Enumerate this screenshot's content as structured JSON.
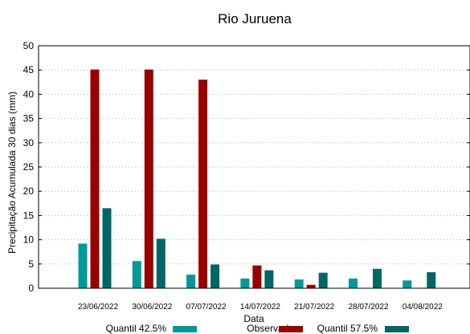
{
  "chart_data": {
    "type": "bar",
    "title": "Rio Juruena",
    "xlabel": "Data",
    "ylabel": "Precipitação Acumulada 30 dias (mm)",
    "ylim": [
      0,
      50
    ],
    "yticks": [
      0,
      5,
      10,
      15,
      20,
      25,
      30,
      35,
      40,
      45,
      50
    ],
    "grid": true,
    "legend_position": "bottom",
    "categories": [
      "23/06/2022",
      "30/06/2022",
      "07/07/2022",
      "14/07/2022",
      "21/07/2022",
      "28/07/2022",
      "04/08/2022"
    ],
    "series": [
      {
        "name": "Quantil 42.5%",
        "color": "#009999",
        "values": [
          9.2,
          5.6,
          2.8,
          2.0,
          1.8,
          2.0,
          1.6
        ]
      },
      {
        "name": "Observado",
        "color": "#990000",
        "values": [
          45.1,
          45.1,
          43.0,
          4.7,
          0.7,
          null,
          null
        ]
      },
      {
        "name": "Quantil 57.5%",
        "color": "#006666",
        "values": [
          16.5,
          10.2,
          4.9,
          3.7,
          3.2,
          4.0,
          3.3
        ]
      }
    ]
  }
}
